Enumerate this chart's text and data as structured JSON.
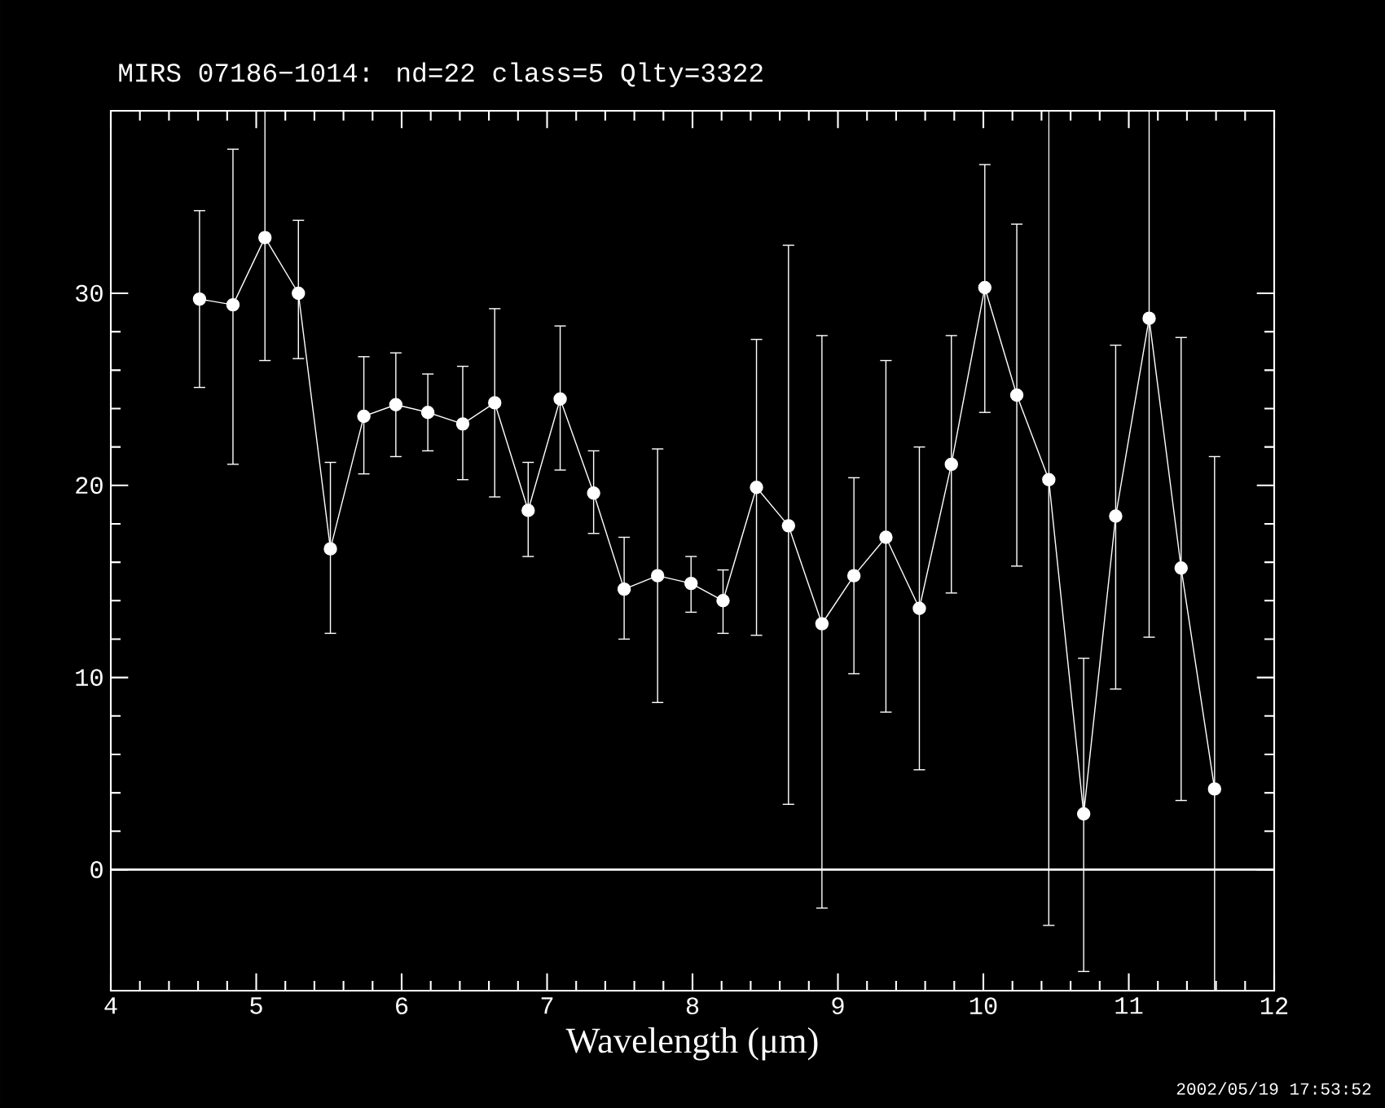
{
  "chart_data": {
    "type": "line",
    "title": "MIRS 07186−1014:    nd=22   class=5   Qlty=3322",
    "xlabel": "Wavelength (μm)",
    "x": [
      4.61,
      4.84,
      5.06,
      5.29,
      5.51,
      5.74,
      5.96,
      6.18,
      6.42,
      6.64,
      6.87,
      7.09,
      7.32,
      7.53,
      7.76,
      7.99,
      8.21,
      8.44,
      8.66,
      8.89,
      9.11,
      9.33,
      9.56,
      9.78,
      10.01,
      10.23,
      10.45,
      10.69,
      10.91,
      11.14,
      11.36,
      11.59
    ],
    "series": [
      {
        "color": "#ffffff",
        "values": [
          29.7,
          29.4,
          32.9,
          30.0,
          16.7,
          23.6,
          24.2,
          23.8,
          23.2,
          24.3,
          18.7,
          24.5,
          19.6,
          14.6,
          15.3,
          14.9,
          14.0,
          19.9,
          17.9,
          12.8,
          15.3,
          17.3,
          13.6,
          21.1,
          30.3,
          24.7,
          20.3,
          2.9,
          18.4,
          28.7,
          15.7,
          4.2
        ],
        "errors": [
          [
            25.1,
            34.3
          ],
          [
            21.1,
            37.5
          ],
          [
            26.5,
            39.5
          ],
          [
            26.6,
            33.8
          ],
          [
            12.3,
            21.2
          ],
          [
            20.6,
            26.7
          ],
          [
            21.5,
            26.9
          ],
          [
            21.8,
            25.8
          ],
          [
            20.3,
            26.2
          ],
          [
            19.4,
            29.2
          ],
          [
            16.3,
            21.2
          ],
          [
            20.8,
            28.3
          ],
          [
            17.5,
            21.8
          ],
          [
            12.0,
            17.3
          ],
          [
            8.7,
            21.9
          ],
          [
            13.4,
            16.3
          ],
          [
            12.3,
            15.6
          ],
          [
            12.2,
            27.6
          ],
          [
            3.4,
            32.5
          ],
          [
            -2.0,
            27.8
          ],
          [
            10.2,
            20.4
          ],
          [
            8.2,
            26.5
          ],
          [
            5.2,
            22.0
          ],
          [
            14.4,
            27.8
          ],
          [
            23.8,
            36.7
          ],
          [
            15.8,
            33.6
          ],
          [
            -2.9,
            39.5
          ],
          [
            -5.3,
            11.0
          ],
          [
            9.4,
            27.3
          ],
          [
            12.1,
            39.5
          ],
          [
            3.6,
            27.7
          ],
          [
            -6.3,
            21.5
          ]
        ]
      }
    ],
    "xlim": [
      4,
      12
    ],
    "ylim": [
      -6.3,
      39.5
    ],
    "xticks": [
      4,
      5,
      6,
      7,
      8,
      9,
      10,
      11,
      12
    ],
    "yticks": [
      0,
      10,
      20,
      30
    ],
    "ref_lines": [
      {
        "axis": "y",
        "value": 0,
        "color": "#ffffff"
      }
    ],
    "grid": false,
    "marker": "circle",
    "line_style": "solid",
    "annotations": [
      "2002/05/19 17:53:52"
    ]
  }
}
